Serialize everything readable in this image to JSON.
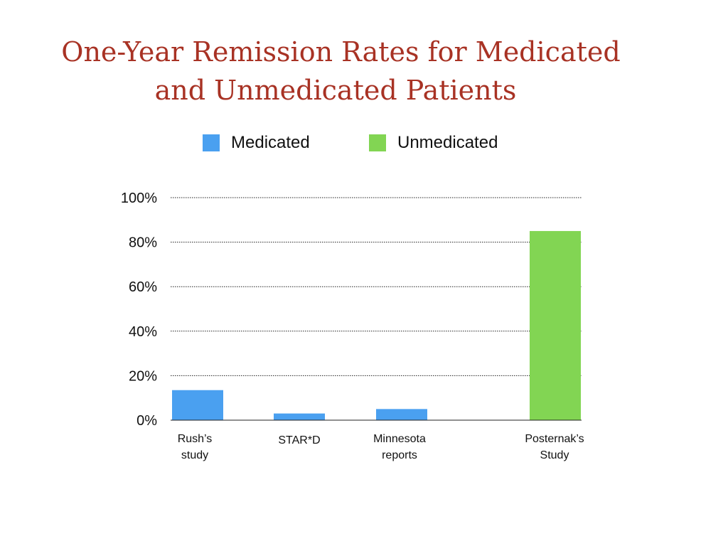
{
  "slide": {
    "title_line1": "One-Year Remission Rates for Medicated",
    "title_line2": "and Unmedicated Patients"
  },
  "legend": [
    {
      "label": "Medicated",
      "color": "#4aa0f0"
    },
    {
      "label": "Unmedicated",
      "color": "#82d553"
    }
  ],
  "chart_data": {
    "type": "bar",
    "title": "One-Year Remission Rates for Medicated and Unmedicated Patients",
    "xlabel": "",
    "ylabel": "",
    "ylim": [
      0,
      100
    ],
    "grid": true,
    "legend_position": "top",
    "yticks": [
      "0%",
      "20%",
      "40%",
      "60%",
      "80%",
      "100%"
    ],
    "categories": [
      [
        "Rush’s",
        "study"
      ],
      [
        "STAR*D"
      ],
      [
        "Minnesota",
        "reports"
      ],
      [
        "Posternak’s",
        "Study"
      ]
    ],
    "series": [
      {
        "name": "Medicated",
        "color": "#4aa0f0",
        "values": [
          13.5,
          3,
          5,
          null
        ]
      },
      {
        "name": "Unmedicated",
        "color": "#82d553",
        "values": [
          null,
          null,
          null,
          85
        ]
      }
    ]
  }
}
